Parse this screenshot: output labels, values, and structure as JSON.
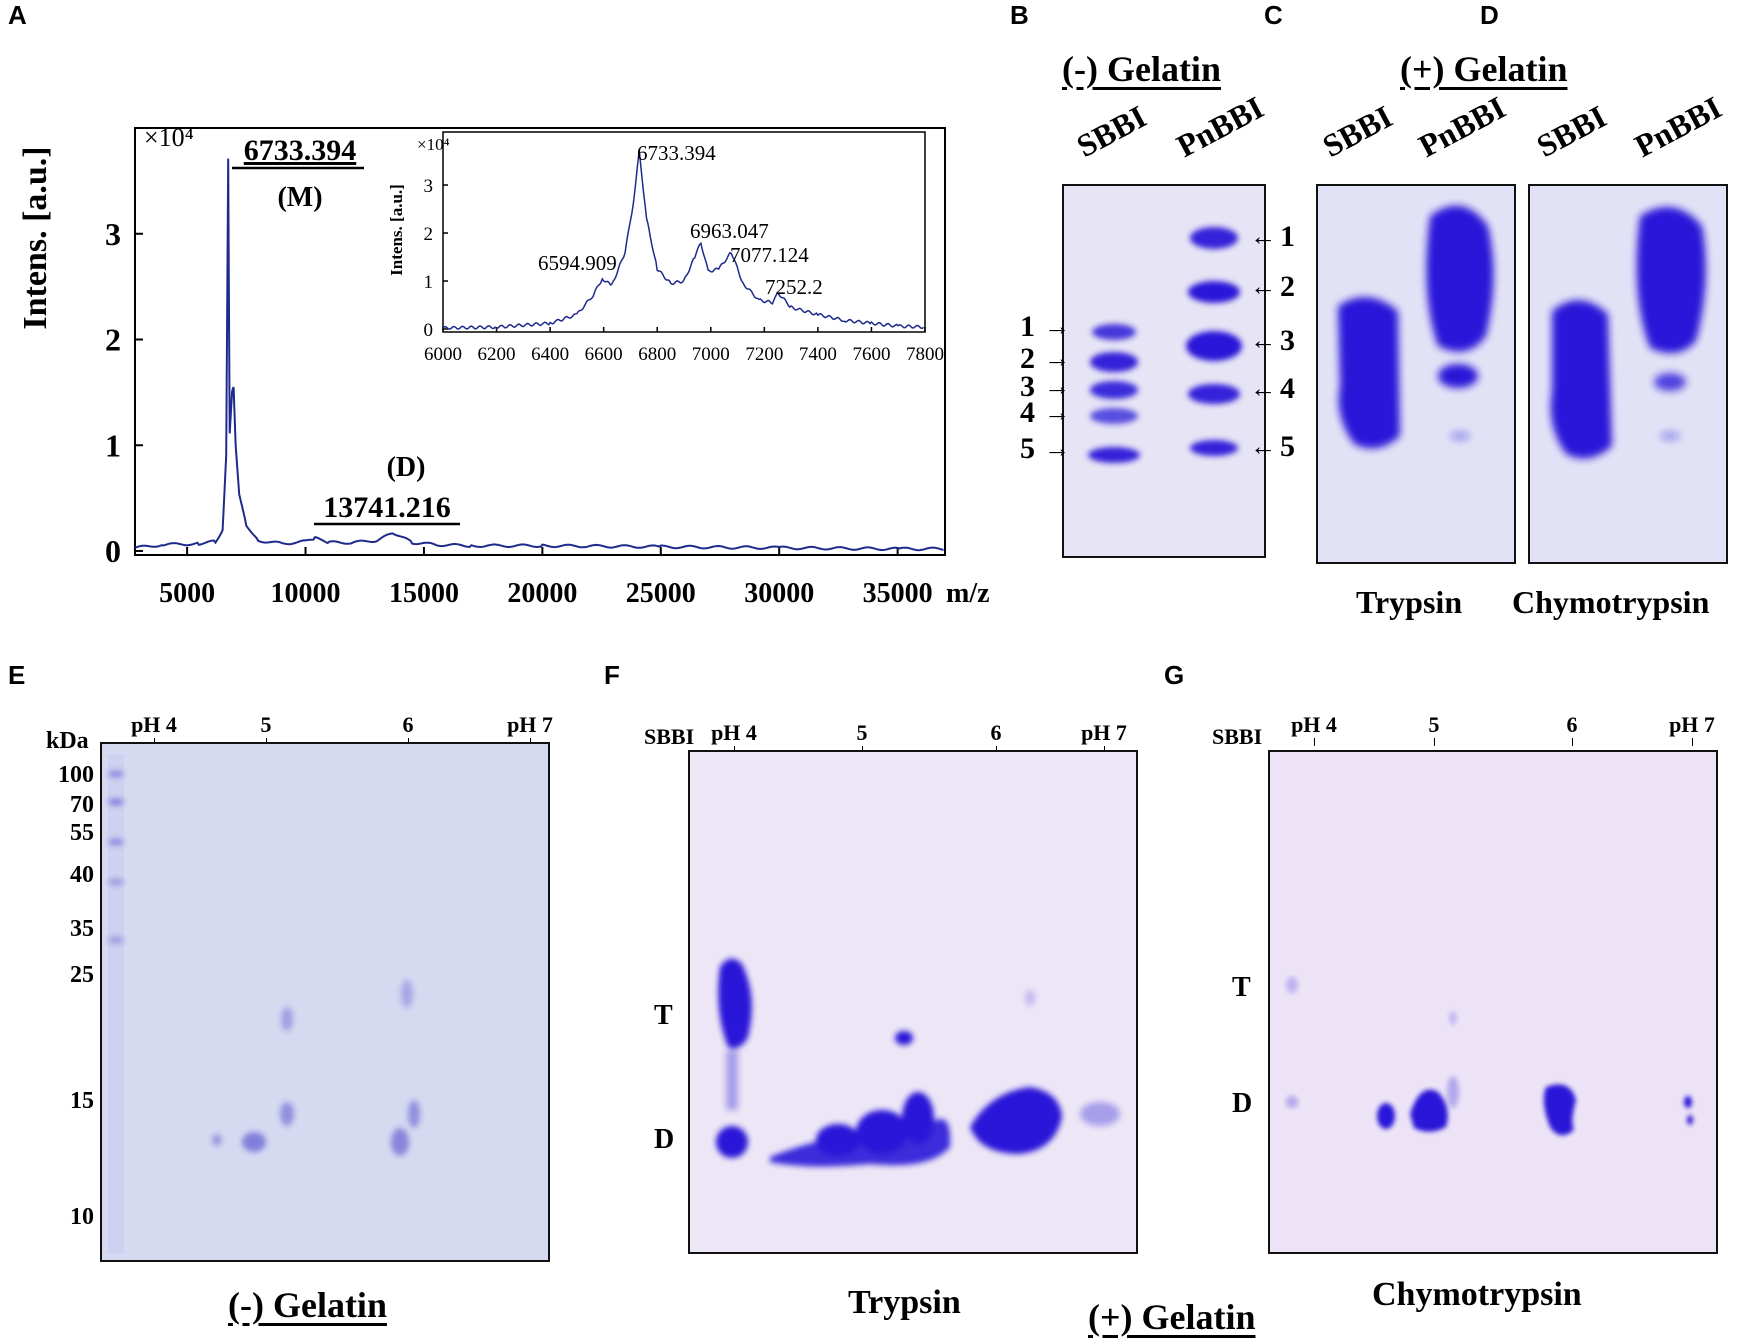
{
  "panels": {
    "A": "A",
    "B": "B",
    "C": "C",
    "D": "D",
    "E": "E",
    "F": "F",
    "G": "G"
  },
  "panel_a": {
    "ylabel": "Intens. [a.u.]",
    "exponent": "×10⁴",
    "xunit": "m/z",
    "yticks": [
      "0",
      "1",
      "2",
      "3"
    ],
    "xticks": [
      "5000",
      "10000",
      "15000",
      "20000",
      "25000",
      "30000",
      "35000"
    ],
    "peak_m_value": "6733.394",
    "peak_m_tag": "(M)",
    "peak_d_tag": "(D)",
    "peak_d_value": "13741.216",
    "inset": {
      "ylabel": "Intens. [a.u.]",
      "exponent": "×10⁴",
      "yticks": [
        "0",
        "1",
        "2",
        "3"
      ],
      "xticks": [
        "6000",
        "6200",
        "6400",
        "6600",
        "6800",
        "7000",
        "7200",
        "7400",
        "7600",
        "7800"
      ],
      "peak_labels": [
        "6733.394",
        "6594.909",
        "6963.047",
        "7077.124",
        "7252.2"
      ]
    }
  },
  "chart_data": [
    {
      "type": "line",
      "ylabel": "Intens. [a.u.]",
      "xlabel": "m/z",
      "y_multiplier": "×10⁴",
      "xlim": [
        2800,
        37000
      ],
      "ylim": [
        0,
        4
      ],
      "grid": false,
      "series": [
        {
          "x": [
            2800,
            4000,
            5500,
            6200,
            6500,
            6650,
            6733,
            6800,
            6900,
            6963,
            7050,
            7200,
            7500,
            8000,
            9000,
            10000,
            10400,
            11000,
            12000,
            13000,
            13741,
            14500,
            15500,
            17000,
            20000,
            25000,
            30000,
            35000,
            37000
          ],
          "y": [
            0.03,
            0.06,
            0.07,
            0.09,
            0.2,
            0.9,
            3.7,
            1.1,
            1.5,
            1.55,
            1.0,
            0.55,
            0.25,
            0.1,
            0.07,
            0.09,
            0.12,
            0.08,
            0.08,
            0.1,
            0.17,
            0.08,
            0.06,
            0.05,
            0.05,
            0.04,
            0.03,
            0.02,
            0.02
          ]
        }
      ],
      "annotations": [
        "6733.394 (M)",
        "(D) 13741.216"
      ]
    },
    {
      "type": "line",
      "ylabel": "Intens. [a.u.]",
      "y_multiplier": "×10⁴",
      "xlim": [
        6000,
        7800
      ],
      "ylim": [
        0,
        4
      ],
      "grid": false,
      "series": [
        {
          "x": [
            6000,
            6200,
            6400,
            6500,
            6560,
            6595,
            6630,
            6680,
            6710,
            6733,
            6760,
            6800,
            6850,
            6900,
            6940,
            6963,
            6990,
            7030,
            7077,
            7120,
            7180,
            7230,
            7252,
            7300,
            7400,
            7500,
            7600,
            7700,
            7800
          ],
          "y": [
            0.02,
            0.04,
            0.12,
            0.3,
            0.7,
            1.05,
            0.9,
            1.6,
            2.6,
            3.7,
            2.3,
            1.25,
            0.95,
            1.0,
            1.5,
            1.8,
            1.2,
            1.25,
            1.6,
            0.95,
            0.6,
            0.55,
            0.75,
            0.45,
            0.3,
            0.18,
            0.12,
            0.06,
            0.04
          ]
        }
      ],
      "annotations": [
        "6733.394",
        "6594.909",
        "6963.047",
        "7077.124",
        "7252.2"
      ]
    }
  ],
  "panel_b": {
    "title": "(-) Gelatin",
    "lanes": [
      "SBBI",
      "PnBBI"
    ],
    "left_bands": [
      "1",
      "2",
      "3",
      "4",
      "5"
    ],
    "right_bands": [
      "1",
      "2",
      "3",
      "4",
      "5"
    ]
  },
  "panel_cd": {
    "title": "(+) Gelatin",
    "c_lanes": [
      "SBBI",
      "PnBBI"
    ],
    "d_lanes": [
      "SBBI",
      "PnBBI"
    ],
    "c_caption": "Trypsin",
    "d_caption": "Chymotrypsin"
  },
  "panel_e": {
    "kda_label": "kDa",
    "markers": [
      "100",
      "70",
      "55",
      "40",
      "35",
      "25",
      "15",
      "10"
    ],
    "ph_ticks": [
      "pH 4",
      "5",
      "6",
      "pH 7"
    ],
    "caption": "(-) Gelatin"
  },
  "panel_f": {
    "sbbi": "SBBI",
    "ph_ticks": [
      "pH 4",
      "5",
      "6",
      "pH 7"
    ],
    "row_labels": [
      "T",
      "D"
    ],
    "caption": "Trypsin"
  },
  "panel_g": {
    "sbbi": "SBBI",
    "ph_ticks": [
      "pH 4",
      "5",
      "6",
      "pH 7"
    ],
    "row_labels": [
      "T",
      "D"
    ],
    "caption": "Chymotrypsin"
  },
  "bottom_caption": "(+) Gelatin",
  "colors": {
    "spectrum": "#1e2a8c",
    "band": "#2a18d8",
    "gel_bg": "#e4e4f6",
    "gel_e_bg": "#d4d8f0"
  }
}
